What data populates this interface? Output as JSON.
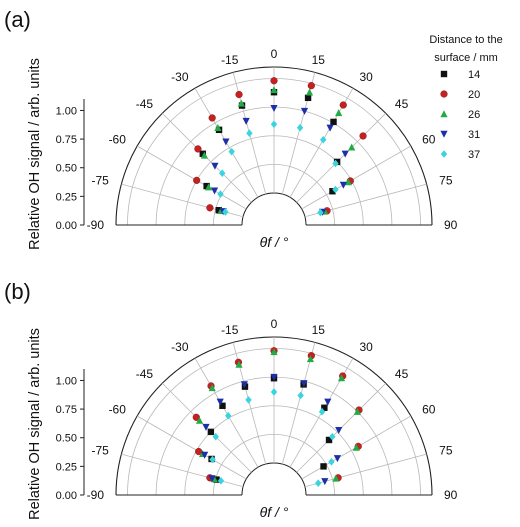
{
  "chart_data": [
    {
      "panel_label": "(a)",
      "type": "scatter",
      "coordinate_system": "polar-half",
      "ylabel": "Relative OH signal / arb. units",
      "xlabel": "θf / °",
      "angle_ticks": [
        "-90",
        "-75",
        "-60",
        "-45",
        "-30",
        "-15",
        "0",
        "15",
        "30",
        "45",
        "60",
        "75",
        "90"
      ],
      "radial_ticks": [
        "0.00",
        "0.25",
        "0.50",
        "0.75",
        "1.00"
      ],
      "rlim": [
        0,
        1.1
      ],
      "legend": {
        "title": [
          "Distance to the",
          "surface / mm"
        ],
        "placement": "right"
      },
      "series": [
        {
          "name": "14",
          "color": "#111111",
          "marker": "square",
          "points": [
            [
              -75,
              0.22
            ],
            [
              -60,
              0.4
            ],
            [
              -45,
              0.6
            ],
            [
              -30,
              0.68
            ],
            [
              -15,
              0.8
            ],
            [
              0,
              0.88
            ],
            [
              15,
              0.87
            ],
            [
              30,
              0.76
            ],
            [
              45,
              0.5
            ],
            [
              60,
              0.31
            ]
          ]
        },
        {
          "name": "20",
          "color": "#c62020",
          "marker": "circle",
          "points": [
            [
              -75,
              0.3
            ],
            [
              -60,
              0.5
            ],
            [
              -45,
              0.66
            ],
            [
              -30,
              0.8
            ],
            [
              -15,
              0.9
            ],
            [
              0,
              0.98
            ],
            [
              15,
              0.98
            ],
            [
              30,
              0.93
            ],
            [
              45,
              0.82
            ],
            [
              60,
              0.49
            ],
            [
              75,
              0.2
            ]
          ]
        },
        {
          "name": "26",
          "color": "#22aa44",
          "marker": "triangle-up",
          "points": [
            [
              -75,
              0.2
            ],
            [
              -60,
              0.38
            ],
            [
              -45,
              0.58
            ],
            [
              -30,
              0.7
            ],
            [
              -15,
              0.82
            ],
            [
              0,
              0.9
            ],
            [
              15,
              0.92
            ],
            [
              30,
              0.85
            ],
            [
              45,
              0.68
            ],
            [
              60,
              0.47
            ],
            [
              75,
              0.18
            ]
          ]
        },
        {
          "name": "31",
          "color": "#1c2fa8",
          "marker": "triangle-down",
          "points": [
            [
              -75,
              0.18
            ],
            [
              -60,
              0.32
            ],
            [
              -45,
              0.45
            ],
            [
              -30,
              0.56
            ],
            [
              -15,
              0.66
            ],
            [
              0,
              0.74
            ],
            [
              15,
              0.75
            ],
            [
              30,
              0.7
            ],
            [
              45,
              0.6
            ],
            [
              60,
              0.42
            ],
            [
              75,
              0.16
            ]
          ]
        },
        {
          "name": "37",
          "color": "#39d4e0",
          "marker": "diamond",
          "points": [
            [
              -75,
              0.16
            ],
            [
              -60,
              0.26
            ],
            [
              -45,
              0.36
            ],
            [
              -30,
              0.46
            ],
            [
              -15,
              0.55
            ],
            [
              0,
              0.6
            ],
            [
              15,
              0.6
            ],
            [
              30,
              0.58
            ],
            [
              45,
              0.48
            ],
            [
              60,
              0.34
            ],
            [
              75,
              0.14
            ]
          ]
        }
      ]
    },
    {
      "panel_label": "(b)",
      "type": "scatter",
      "coordinate_system": "polar-half",
      "ylabel": "Relative OH signal / arb. units",
      "xlabel": "θf / °",
      "angle_ticks": [
        "-90",
        "-75",
        "-60",
        "-45",
        "-30",
        "-15",
        "0",
        "15",
        "30",
        "45",
        "60",
        "75",
        "90"
      ],
      "radial_ticks": [
        "0.00",
        "0.25",
        "0.50",
        "0.75",
        "1.00"
      ],
      "rlim": [
        0,
        1.1
      ],
      "series": [
        {
          "name": "14",
          "color": "#111111",
          "marker": "square",
          "points": [
            [
              -75,
              0.24
            ],
            [
              -60,
              0.35
            ],
            [
              -45,
              0.5
            ],
            [
              -30,
              0.62
            ],
            [
              -15,
              0.7
            ],
            [
              0,
              0.74
            ],
            [
              15,
              0.72
            ],
            [
              30,
              0.6
            ],
            [
              45,
              0.4
            ],
            [
              60,
              0.22
            ]
          ]
        },
        {
          "name": "20",
          "color": "#c62020",
          "marker": "circle",
          "points": [
            [
              -75,
              0.3
            ],
            [
              -60,
              0.48
            ],
            [
              -45,
              0.68
            ],
            [
              -30,
              0.82
            ],
            [
              -15,
              0.92
            ],
            [
              0,
              0.98
            ],
            [
              15,
              0.98
            ],
            [
              30,
              0.92
            ],
            [
              45,
              0.77
            ],
            [
              60,
              0.57
            ],
            [
              75,
              0.3
            ]
          ]
        },
        {
          "name": "26",
          "color": "#22aa44",
          "marker": "triangle-up",
          "points": [
            [
              -75,
              0.26
            ],
            [
              -60,
              0.44
            ],
            [
              -45,
              0.64
            ],
            [
              -30,
              0.8
            ],
            [
              -15,
              0.9
            ],
            [
              0,
              0.97
            ],
            [
              15,
              0.95
            ],
            [
              30,
              0.9
            ],
            [
              45,
              0.75
            ],
            [
              60,
              0.55
            ],
            [
              75,
              0.28
            ]
          ]
        },
        {
          "name": "31",
          "color": "#1c2fa8",
          "marker": "triangle-down",
          "points": [
            [
              -75,
              0.28
            ],
            [
              -60,
              0.42
            ],
            [
              -45,
              0.56
            ],
            [
              -30,
              0.66
            ],
            [
              -15,
              0.72
            ],
            [
              0,
              0.75
            ],
            [
              15,
              0.73
            ],
            [
              30,
              0.66
            ],
            [
              45,
              0.52
            ],
            [
              60,
              0.36
            ],
            [
              75,
              0.18
            ]
          ]
        },
        {
          "name": "37",
          "color": "#39d4e0",
          "marker": "diamond",
          "points": [
            [
              -75,
              0.2
            ],
            [
              -60,
              0.34
            ],
            [
              -45,
              0.44
            ],
            [
              -30,
              0.52
            ],
            [
              -15,
              0.58
            ],
            [
              0,
              0.62
            ],
            [
              15,
              0.62
            ],
            [
              30,
              0.56
            ],
            [
              45,
              0.44
            ],
            [
              60,
              0.3
            ],
            [
              75,
              0.12
            ]
          ]
        }
      ]
    }
  ]
}
